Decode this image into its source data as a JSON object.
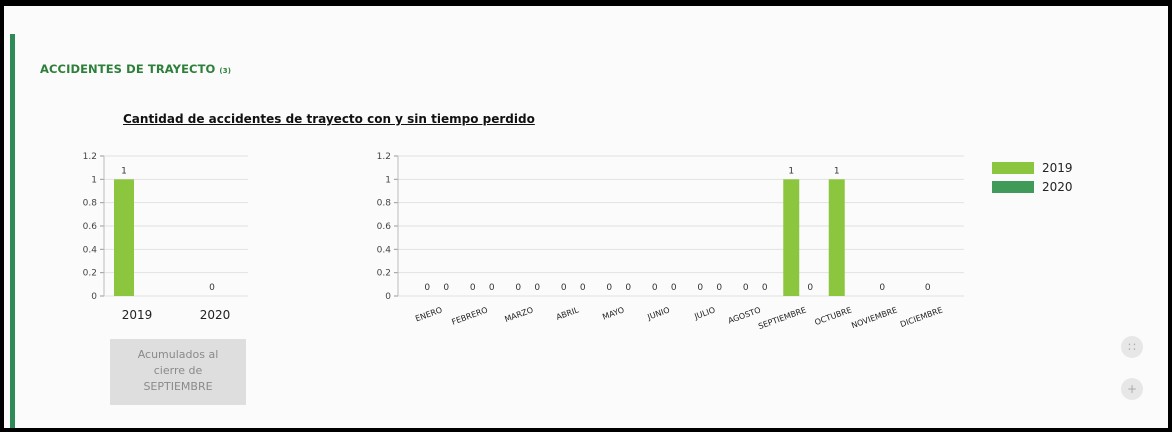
{
  "section_title": "ACCIDENTES DE TRAYECTO",
  "section_note": "(3)",
  "chart_title": "Cantidad de accidentes  de trayecto con y sin tiempo perdido",
  "accum_label_line1": "Acumulados al",
  "accum_label_line2": "cierre de",
  "accum_label_line3": "SEPTIEMBRE",
  "legend": [
    {
      "name": "2019",
      "color": "#8cc63f"
    },
    {
      "name": "2020",
      "color": "#3f9b57"
    }
  ],
  "controls": {
    "fit_icon": "fit-icon",
    "zoom_in_icon": "zoom-in-icon"
  },
  "chart_data": [
    {
      "type": "bar",
      "categories": [
        "2019",
        "2020"
      ],
      "values": [
        1,
        0
      ],
      "data_labels": [
        "1",
        "0"
      ],
      "ylim": [
        0,
        1.2
      ],
      "yticks": [
        "0",
        "0.2",
        "0.4",
        "0.6",
        "0.8",
        "1",
        "1.2"
      ],
      "grid": true
    },
    {
      "type": "bar",
      "categories": [
        "ENERO",
        "FEBRERO",
        "MARZO",
        "ABRIL",
        "MAYO",
        "JUNIO",
        "JULIO",
        "AGOSTO",
        "SEPTIEMBRE",
        "OCTUBRE",
        "NOVIEMBRE",
        "DICIEMBRE"
      ],
      "series": [
        {
          "name": "2019",
          "values": [
            0,
            0,
            0,
            0,
            0,
            0,
            0,
            0,
            1,
            1,
            0,
            0
          ]
        },
        {
          "name": "2020",
          "values": [
            0,
            0,
            0,
            0,
            0,
            0,
            0,
            0,
            0,
            null,
            null,
            null
          ]
        }
      ],
      "ylim": [
        0,
        1.2
      ],
      "yticks": [
        "0",
        "0.2",
        "0.4",
        "0.6",
        "0.8",
        "1",
        "1.2"
      ],
      "legend": "right",
      "grid": true
    }
  ]
}
